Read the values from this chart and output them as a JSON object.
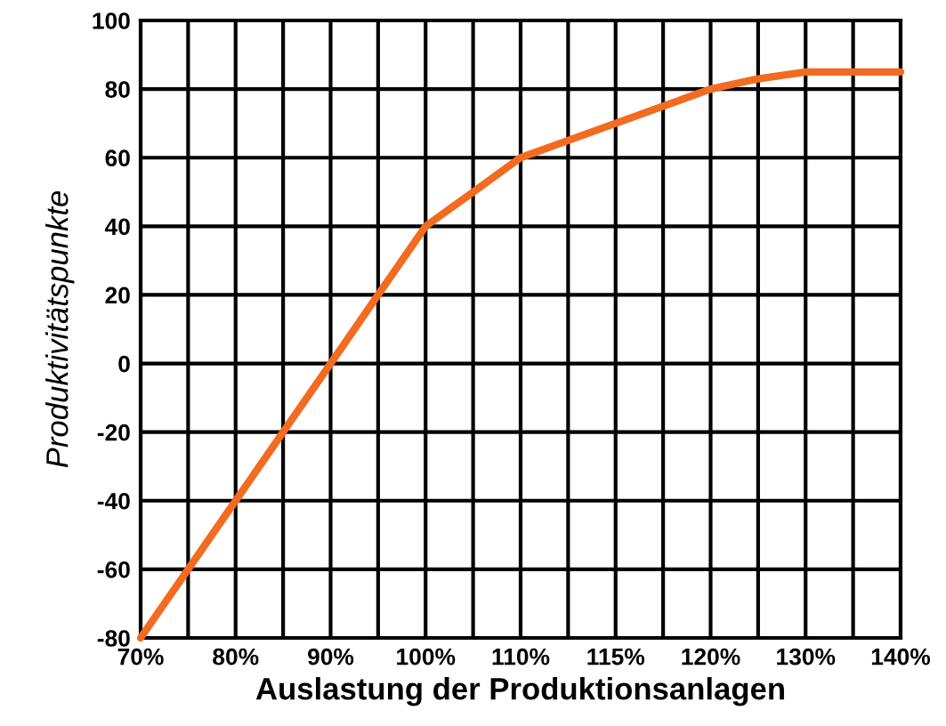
{
  "chart_data": {
    "type": "line",
    "xlabel": "Auslastung der Produktionsanlagen",
    "ylabel": "Produktivitätspunkte",
    "categories": [
      "70%",
      null,
      "80%",
      null,
      "90%",
      null,
      "100%",
      null,
      "110%",
      null,
      "115%",
      null,
      "120%",
      null,
      "130%",
      null,
      "140%"
    ],
    "series": [
      {
        "color": "#f26b21",
        "values": [
          -80,
          -60,
          -40,
          -20,
          0,
          20,
          40,
          50,
          60,
          65,
          70,
          75,
          80,
          83,
          85,
          85,
          85
        ]
      }
    ],
    "ylim": [
      -80,
      100
    ],
    "yticks": [
      -80,
      -60,
      -40,
      -20,
      0,
      20,
      40,
      60,
      80,
      100
    ],
    "grid": true,
    "marker": "none",
    "line_style": "solid"
  }
}
